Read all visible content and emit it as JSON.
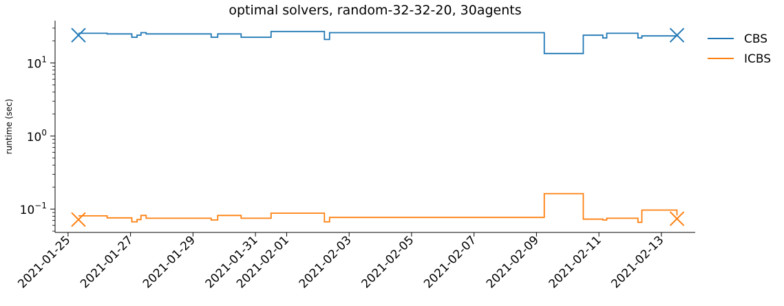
{
  "chart_data": {
    "type": "line",
    "title": "optimal solvers, random-32-32-20, 30agents",
    "xlabel": "",
    "ylabel": "runtime (sec)",
    "yscale": "log",
    "ylim": [
      0.048,
      38
    ],
    "xlim": [
      "2021-01-24 14:00",
      "2021-02-14 02:00"
    ],
    "grid": false,
    "legend_position": "upper-right-outside",
    "x_ticks": [
      "2021-01-25",
      "2021-01-27",
      "2021-01-29",
      "2021-01-31",
      "2021-02-01",
      "2021-02-03",
      "2021-02-05",
      "2021-02-07",
      "2021-02-09",
      "2021-02-11",
      "2021-02-13"
    ],
    "y_ticks": [
      {
        "value": 10,
        "base": "10",
        "exp": "1"
      },
      {
        "value": 1,
        "base": "10",
        "exp": "0"
      },
      {
        "value": 0.1,
        "base": "10",
        "exp": "−1"
      }
    ],
    "series": [
      {
        "name": "CBS",
        "color": "#1f77b4",
        "step": true,
        "points": [
          [
            "2021-01-25 08:00",
            25.5
          ],
          [
            "2021-01-26 06:00",
            25.0
          ],
          [
            "2021-01-27 01:00",
            22.5
          ],
          [
            "2021-01-27 05:00",
            24.0
          ],
          [
            "2021-01-27 08:00",
            26.0
          ],
          [
            "2021-01-27 12:00",
            25.0
          ],
          [
            "2021-01-29 14:00",
            22.5
          ],
          [
            "2021-01-29 19:00",
            25.0
          ],
          [
            "2021-01-30 13:00",
            22.5
          ],
          [
            "2021-01-31 12:00",
            27.0
          ],
          [
            "2021-02-02 05:00",
            21.0
          ],
          [
            "2021-02-02 09:00",
            26.0
          ],
          [
            "2021-02-09 06:00",
            13.5
          ],
          [
            "2021-02-10 12:00",
            24.0
          ],
          [
            "2021-02-11 03:00",
            22.0
          ],
          [
            "2021-02-11 06:00",
            25.5
          ],
          [
            "2021-02-12 06:00",
            22.0
          ],
          [
            "2021-02-12 09:00",
            23.5
          ],
          [
            "2021-02-13 12:00",
            23.5
          ]
        ],
        "end_markers": [
          [
            "2021-01-25 08:00",
            24.0
          ],
          [
            "2021-02-13 12:00",
            24.0
          ]
        ]
      },
      {
        "name": "ICBS",
        "color": "#ff7f0e",
        "step": true,
        "points": [
          [
            "2021-01-25 08:00",
            0.081
          ],
          [
            "2021-01-26 06:00",
            0.076
          ],
          [
            "2021-01-27 01:00",
            0.067
          ],
          [
            "2021-01-27 05:00",
            0.072
          ],
          [
            "2021-01-27 08:00",
            0.082
          ],
          [
            "2021-01-27 12:00",
            0.075
          ],
          [
            "2021-01-29 14:00",
            0.071
          ],
          [
            "2021-01-29 19:00",
            0.082
          ],
          [
            "2021-01-30 13:00",
            0.075
          ],
          [
            "2021-01-31 12:00",
            0.088
          ],
          [
            "2021-02-02 05:00",
            0.067
          ],
          [
            "2021-02-02 09:00",
            0.077
          ],
          [
            "2021-02-09 06:00",
            0.163
          ],
          [
            "2021-02-10 12:00",
            0.073
          ],
          [
            "2021-02-11 03:00",
            0.071
          ],
          [
            "2021-02-11 06:00",
            0.075
          ],
          [
            "2021-02-12 06:00",
            0.066
          ],
          [
            "2021-02-12 09:00",
            0.097
          ],
          [
            "2021-02-13 12:00",
            0.082
          ]
        ],
        "end_markers": [
          [
            "2021-01-25 08:00",
            0.072
          ],
          [
            "2021-02-13 12:00",
            0.074
          ]
        ]
      }
    ]
  }
}
